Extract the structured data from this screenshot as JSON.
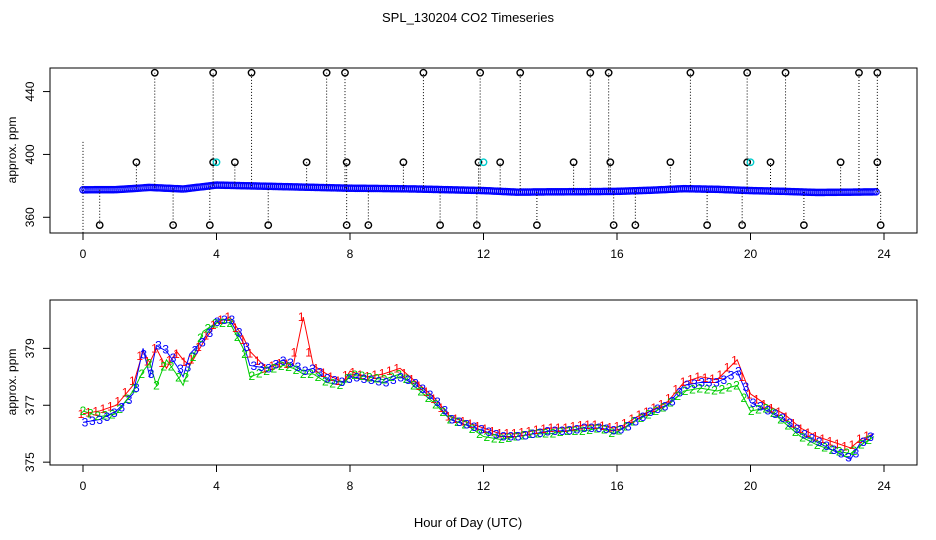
{
  "title": "SPL_130204  CO2 Timeseries",
  "xlabel": "Hour of Day (UTC)",
  "colors": {
    "one": "#ff0000",
    "two": "#00cc00",
    "three": "#0000ff",
    "outlier": "#000000",
    "alt": "#00cccc"
  },
  "chart_data": [
    {
      "type": "scatter",
      "name": "top-panel",
      "ylabel": "approx. ppm",
      "xlim": [
        0,
        24
      ],
      "ylim": [
        350,
        455
      ],
      "xticks": [
        "0",
        "4",
        "8",
        "12",
        "16",
        "20",
        "24"
      ],
      "yticks": [
        "360",
        "400",
        "440"
      ],
      "baseline": [
        [
          0,
          377.5
        ],
        [
          1,
          377.6
        ],
        [
          2,
          379
        ],
        [
          3,
          378
        ],
        [
          4,
          380.5
        ],
        [
          5,
          380
        ],
        [
          6,
          379.5
        ],
        [
          7,
          379
        ],
        [
          8,
          378.5
        ],
        [
          9,
          378.3
        ],
        [
          10,
          378
        ],
        [
          11,
          377.5
        ],
        [
          12,
          377
        ],
        [
          13,
          376
        ],
        [
          14,
          376.2
        ],
        [
          15,
          376.3
        ],
        [
          16,
          376.5
        ],
        [
          17,
          377.2
        ],
        [
          18,
          378.2
        ],
        [
          19,
          377.8
        ],
        [
          20,
          377
        ],
        [
          21,
          376.5
        ],
        [
          22,
          375.8
        ],
        [
          23,
          376
        ],
        [
          23.8,
          376.2
        ]
      ],
      "outliers_high": [
        [
          2.15,
          452
        ],
        [
          3.9,
          452
        ],
        [
          5.05,
          452
        ],
        [
          7.3,
          452
        ],
        [
          7.85,
          452
        ],
        [
          10.2,
          452
        ],
        [
          11.9,
          452
        ],
        [
          13.1,
          452
        ],
        [
          15.2,
          452
        ],
        [
          15.75,
          452
        ],
        [
          18.2,
          452
        ],
        [
          19.9,
          452
        ],
        [
          21.05,
          452
        ],
        [
          23.25,
          452
        ],
        [
          23.8,
          452
        ]
      ],
      "outliers_mid": [
        [
          1.6,
          395
        ],
        [
          3.9,
          395
        ],
        [
          4.55,
          395
        ],
        [
          6.7,
          395
        ],
        [
          7.9,
          395
        ],
        [
          9.6,
          395
        ],
        [
          11.85,
          395
        ],
        [
          12.5,
          395
        ],
        [
          14.7,
          395
        ],
        [
          15.8,
          395
        ],
        [
          17.6,
          395
        ],
        [
          19.9,
          395
        ],
        [
          20.6,
          395
        ],
        [
          22.7,
          395
        ],
        [
          23.8,
          395
        ]
      ],
      "outliers_low": [
        [
          0.5,
          355
        ],
        [
          2.7,
          355
        ],
        [
          3.8,
          355
        ],
        [
          5.55,
          355
        ],
        [
          7.9,
          355
        ],
        [
          8.55,
          355
        ],
        [
          10.7,
          355
        ],
        [
          11.8,
          355
        ],
        [
          13.6,
          355
        ],
        [
          15.9,
          355
        ],
        [
          16.55,
          355
        ],
        [
          18.7,
          355
        ],
        [
          19.75,
          355
        ],
        [
          21.6,
          355
        ],
        [
          23.9,
          355
        ]
      ],
      "alt_points": [
        [
          4.0,
          395
        ],
        [
          12.0,
          395
        ],
        [
          20.0,
          395
        ]
      ]
    },
    {
      "type": "line",
      "name": "bottom-panel",
      "ylabel": "approx. ppm",
      "xlim": [
        0,
        24
      ],
      "ylim": [
        374.9,
        380.7
      ],
      "xticks": [
        "0",
        "4",
        "8",
        "12",
        "16",
        "20",
        "24"
      ],
      "yticks": [
        "375",
        "377",
        "379"
      ],
      "series": [
        {
          "name": "1",
          "color": "#ff0000",
          "x": [
            0,
            0.5,
            1,
            1.5,
            1.8,
            2,
            2.2,
            2.5,
            2.8,
            3,
            3.2,
            3.6,
            4,
            4.4,
            4.8,
            5,
            5.5,
            6,
            6.3,
            6.6,
            6.9,
            7.3,
            7.8,
            8,
            8.5,
            9,
            9.5,
            10,
            10.5,
            11,
            11.5,
            12,
            12.5,
            13,
            13.5,
            14,
            14.5,
            15,
            15.5,
            15.9,
            16.2,
            16.6,
            17,
            17.5,
            18,
            18.5,
            19,
            19.6,
            20,
            20.5,
            21,
            21.5,
            22,
            22.5,
            23,
            23.3,
            23.7
          ],
          "y": [
            376.7,
            376.8,
            377.0,
            377.7,
            378.9,
            378.5,
            379.0,
            378.3,
            378.9,
            378.6,
            378.4,
            379.2,
            379.9,
            380.1,
            379.4,
            378.9,
            378.3,
            378.5,
            378.4,
            380.1,
            378.4,
            378.1,
            377.8,
            378.2,
            378.0,
            378.1,
            378.3,
            377.8,
            377.3,
            376.6,
            376.4,
            376.2,
            376.0,
            376.0,
            376.1,
            376.2,
            376.2,
            376.3,
            376.3,
            376.2,
            376.3,
            376.6,
            376.8,
            377.1,
            377.8,
            378.0,
            377.9,
            378.6,
            377.4,
            377.0,
            376.7,
            376.2,
            375.9,
            375.7,
            375.5,
            375.8,
            376.0
          ]
        },
        {
          "name": "2",
          "color": "#00cc00",
          "x": [
            0,
            0.5,
            1,
            1.5,
            1.8,
            2,
            2.2,
            2.5,
            2.8,
            3,
            3.2,
            3.6,
            4,
            4.4,
            4.8,
            5,
            5.5,
            6,
            6.3,
            6.6,
            6.9,
            7.3,
            7.8,
            8,
            8.5,
            9,
            9.5,
            10,
            10.5,
            11,
            11.5,
            12,
            12.5,
            13,
            13.5,
            14,
            14.5,
            15,
            15.5,
            15.9,
            16.2,
            16.6,
            17,
            17.5,
            18,
            18.5,
            19,
            19.6,
            20,
            20.5,
            21,
            21.5,
            22,
            22.5,
            23,
            23.3,
            23.7
          ],
          "y": [
            376.8,
            376.6,
            376.7,
            377.5,
            378.2,
            378.5,
            377.7,
            378.6,
            378.1,
            377.7,
            378.4,
            379.6,
            379.9,
            379.9,
            379.0,
            378.0,
            378.2,
            378.4,
            378.3,
            378.1,
            378.1,
            377.8,
            377.7,
            378.1,
            378.0,
            377.9,
            378.1,
            377.6,
            377.1,
            376.5,
            376.3,
            375.9,
            375.8,
            375.9,
            376.0,
            376.0,
            376.1,
            376.1,
            376.2,
            376.0,
            376.2,
            376.5,
            376.7,
            377.0,
            377.5,
            377.6,
            377.5,
            377.7,
            376.8,
            376.9,
            376.4,
            375.9,
            375.6,
            375.4,
            375.3,
            375.6,
            375.9
          ]
        },
        {
          "name": "3",
          "color": "#0000ff",
          "x": [
            0,
            0.5,
            1,
            1.5,
            1.8,
            2,
            2.2,
            2.5,
            2.8,
            3,
            3.2,
            3.6,
            4,
            4.4,
            4.8,
            5,
            5.5,
            6,
            6.3,
            6.6,
            6.9,
            7.3,
            7.8,
            8,
            8.5,
            9,
            9.5,
            10,
            10.5,
            11,
            11.5,
            12,
            12.5,
            13,
            13.5,
            14,
            14.5,
            15,
            15.5,
            15.9,
            16.2,
            16.6,
            17,
            17.5,
            18,
            18.5,
            19,
            19.6,
            20,
            20.5,
            21,
            21.5,
            22,
            22.5,
            23,
            23.3,
            23.7
          ],
          "y": [
            376.4,
            376.5,
            376.8,
            377.4,
            379.0,
            378.0,
            379.1,
            378.9,
            378.4,
            378.0,
            378.8,
            379.3,
            380.0,
            380.0,
            379.2,
            378.4,
            378.3,
            378.6,
            378.4,
            378.2,
            378.3,
            377.9,
            377.8,
            378.0,
            377.9,
            377.8,
            378.0,
            377.7,
            377.2,
            376.5,
            376.3,
            376.1,
            375.9,
            375.9,
            376.0,
            376.1,
            376.1,
            376.2,
            376.2,
            376.1,
            376.2,
            376.5,
            376.8,
            377.0,
            377.7,
            377.8,
            377.8,
            378.2,
            377.1,
            376.8,
            376.5,
            376.0,
            375.7,
            375.4,
            375.1,
            375.7,
            376.0
          ]
        }
      ]
    }
  ]
}
